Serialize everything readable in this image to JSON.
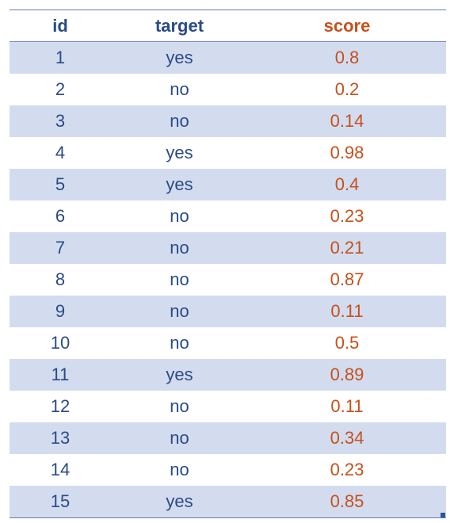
{
  "table": {
    "columns": [
      "id",
      "target",
      "score"
    ],
    "rows": [
      {
        "id": "1",
        "target": "yes",
        "score": "0.8"
      },
      {
        "id": "2",
        "target": "no",
        "score": "0.2"
      },
      {
        "id": "3",
        "target": "no",
        "score": "0.14"
      },
      {
        "id": "4",
        "target": "yes",
        "score": "0.98"
      },
      {
        "id": "5",
        "target": "yes",
        "score": "0.4"
      },
      {
        "id": "6",
        "target": "no",
        "score": "0.23"
      },
      {
        "id": "7",
        "target": "no",
        "score": "0.21"
      },
      {
        "id": "8",
        "target": "no",
        "score": "0.87"
      },
      {
        "id": "9",
        "target": "no",
        "score": "0.11"
      },
      {
        "id": "10",
        "target": "no",
        "score": "0.5"
      },
      {
        "id": "11",
        "target": "yes",
        "score": "0.89"
      },
      {
        "id": "12",
        "target": "no",
        "score": "0.11"
      },
      {
        "id": "13",
        "target": "no",
        "score": "0.34"
      },
      {
        "id": "14",
        "target": "no",
        "score": "0.23"
      },
      {
        "id": "15",
        "target": "yes",
        "score": "0.85"
      }
    ]
  },
  "colors": {
    "header_text": "#2b4b86",
    "score_text": "#c5511c",
    "band_fill": "#d3dcef",
    "border": "#5f7fb3"
  },
  "icons": {
    "resize_handle": "table-resize-handle-icon"
  }
}
